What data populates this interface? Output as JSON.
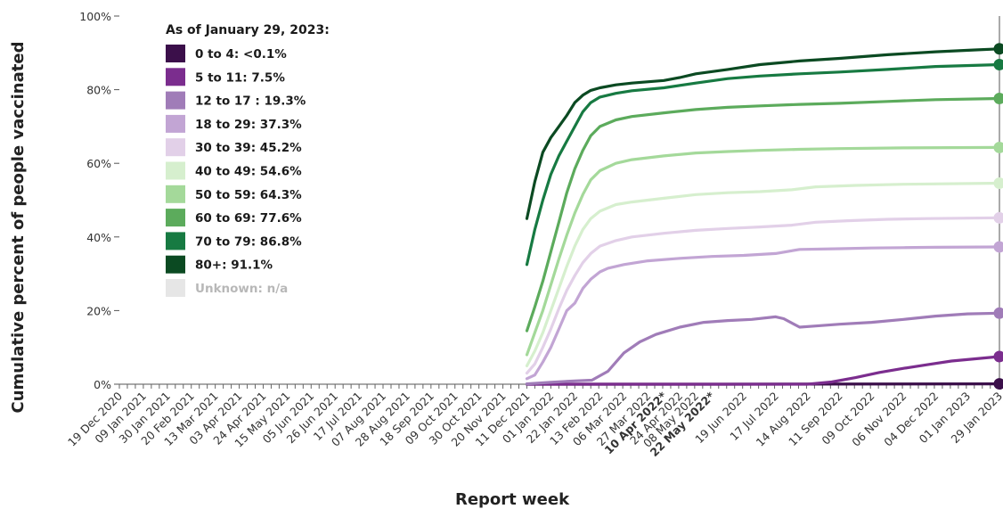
{
  "chart_data": {
    "type": "line",
    "xlabel": "Report week",
    "ylabel": "Cumulative percent of people vaccinated",
    "ylim": [
      0,
      100
    ],
    "y_ticks": [
      "0%",
      "20%",
      "40%",
      "60%",
      "80%",
      "100%"
    ],
    "y_tick_values": [
      0,
      20,
      40,
      60,
      80,
      100
    ],
    "x_range": [
      "2020-12-19",
      "2023-01-29"
    ],
    "x_tick_labels": [
      {
        "date": "2020-12-19",
        "label": "19 Dec 2020"
      },
      {
        "date": "2021-01-09",
        "label": "09 Jan 2021"
      },
      {
        "date": "2021-01-30",
        "label": "30 Jan 2021"
      },
      {
        "date": "2021-02-20",
        "label": "20 Feb 2021"
      },
      {
        "date": "2021-03-13",
        "label": "13 Mar 2021"
      },
      {
        "date": "2021-04-03",
        "label": "03 Apr 2021"
      },
      {
        "date": "2021-04-24",
        "label": "24 Apr 2021"
      },
      {
        "date": "2021-05-15",
        "label": "15 May 2021"
      },
      {
        "date": "2021-06-05",
        "label": "05 Jun 2021"
      },
      {
        "date": "2021-06-26",
        "label": "26 Jun 2021"
      },
      {
        "date": "2021-07-17",
        "label": "17 Jul 2021"
      },
      {
        "date": "2021-08-07",
        "label": "07 Aug 2021"
      },
      {
        "date": "2021-08-28",
        "label": "28 Aug 2021"
      },
      {
        "date": "2021-09-18",
        "label": "18 Sep 2021"
      },
      {
        "date": "2021-10-09",
        "label": "09 Oct 2021"
      },
      {
        "date": "2021-10-30",
        "label": "30 Oct 2021"
      },
      {
        "date": "2021-11-20",
        "label": "20 Nov 2021"
      },
      {
        "date": "2021-12-11",
        "label": "11 Dec 2021"
      },
      {
        "date": "2022-01-01",
        "label": "01 Jan 2022"
      },
      {
        "date": "2022-01-22",
        "label": "22 Jan 2022"
      },
      {
        "date": "2022-02-13",
        "label": "13 Feb 2022"
      },
      {
        "date": "2022-03-06",
        "label": "06 Mar 2022"
      },
      {
        "date": "2022-03-27",
        "label": "27 Mar 2022"
      },
      {
        "date": "2022-04-10",
        "label": "10 Apr 2022*",
        "bold": true
      },
      {
        "date": "2022-04-24",
        "label": "24 Apr 2022"
      },
      {
        "date": "2022-05-08",
        "label": "08 May 2022"
      },
      {
        "date": "2022-05-22",
        "label": "22 May 2022*",
        "bold": true
      },
      {
        "date": "2022-06-19",
        "label": "19 Jun 2022"
      },
      {
        "date": "2022-07-17",
        "label": "17 Jul 2022"
      },
      {
        "date": "2022-08-14",
        "label": "14 Aug 2022"
      },
      {
        "date": "2022-09-11",
        "label": "11 Sep 2022"
      },
      {
        "date": "2022-10-09",
        "label": "09 Oct 2022"
      },
      {
        "date": "2022-11-06",
        "label": "06 Nov 2022"
      },
      {
        "date": "2022-12-04",
        "label": "04 Dec 2022"
      },
      {
        "date": "2023-01-01",
        "label": "01 Jan 2023"
      },
      {
        "date": "2023-01-29",
        "label": "29 Jan 2023"
      }
    ],
    "legend_title": "As of January 29, 2023:",
    "legend_position": "top-left",
    "grid": false,
    "series": [
      {
        "name": "0 to 4: <0.1%",
        "color": "#3b0f4a",
        "points": [
          [
            "2021-12-11",
            0
          ],
          [
            "2022-06-01",
            0
          ],
          [
            "2023-01-29",
            0.1
          ]
        ]
      },
      {
        "name": "5 to 11: 7.5%",
        "color": "#7b2d8e",
        "points": [
          [
            "2021-12-11",
            0
          ],
          [
            "2022-08-14",
            0
          ],
          [
            "2022-09-04",
            0.6
          ],
          [
            "2022-09-25",
            1.8
          ],
          [
            "2022-10-16",
            3.2
          ],
          [
            "2022-11-06",
            4.3
          ],
          [
            "2022-11-27",
            5.3
          ],
          [
            "2022-12-18",
            6.3
          ],
          [
            "2023-01-08",
            6.9
          ],
          [
            "2023-01-29",
            7.5
          ]
        ]
      },
      {
        "name": "12 to 17 : 19.3%",
        "color": "#a07cb8",
        "points": [
          [
            "2021-12-11",
            0.1
          ],
          [
            "2022-01-01",
            0.5
          ],
          [
            "2022-01-22",
            0.9
          ],
          [
            "2022-02-06",
            1.1
          ],
          [
            "2022-02-20",
            3.5
          ],
          [
            "2022-03-06",
            8.5
          ],
          [
            "2022-03-20",
            11.5
          ],
          [
            "2022-04-03",
            13.5
          ],
          [
            "2022-04-24",
            15.5
          ],
          [
            "2022-05-15",
            16.8
          ],
          [
            "2022-06-05",
            17.3
          ],
          [
            "2022-06-26",
            17.6
          ],
          [
            "2022-07-17",
            18.3
          ],
          [
            "2022-07-24",
            17.8
          ],
          [
            "2022-08-07",
            15.5
          ],
          [
            "2022-08-21",
            15.8
          ],
          [
            "2022-09-11",
            16.3
          ],
          [
            "2022-10-09",
            16.8
          ],
          [
            "2022-11-06",
            17.6
          ],
          [
            "2022-12-04",
            18.5
          ],
          [
            "2023-01-01",
            19.1
          ],
          [
            "2023-01-29",
            19.3
          ]
        ]
      },
      {
        "name": "18 to 29: 37.3%",
        "color": "#c2a5d4",
        "points": [
          [
            "2021-12-11",
            1.5
          ],
          [
            "2021-12-18",
            2.5
          ],
          [
            "2021-12-25",
            6.0
          ],
          [
            "2022-01-01",
            10.0
          ],
          [
            "2022-01-08",
            15.0
          ],
          [
            "2022-01-15",
            20.0
          ],
          [
            "2022-01-22",
            22.0
          ],
          [
            "2022-01-29",
            26.0
          ],
          [
            "2022-02-05",
            28.5
          ],
          [
            "2022-02-13",
            30.5
          ],
          [
            "2022-02-20",
            31.5
          ],
          [
            "2022-03-06",
            32.5
          ],
          [
            "2022-03-27",
            33.5
          ],
          [
            "2022-04-24",
            34.2
          ],
          [
            "2022-05-22",
            34.7
          ],
          [
            "2022-06-19",
            35.0
          ],
          [
            "2022-07-17",
            35.5
          ],
          [
            "2022-08-07",
            36.6
          ],
          [
            "2022-09-11",
            36.8
          ],
          [
            "2022-10-09",
            37.0
          ],
          [
            "2022-11-06",
            37.1
          ],
          [
            "2022-12-04",
            37.2
          ],
          [
            "2023-01-29",
            37.3
          ]
        ]
      },
      {
        "name": "30 to 39: 45.2%",
        "color": "#e2d0e8",
        "points": [
          [
            "2021-12-11",
            3.0
          ],
          [
            "2021-12-18",
            5.5
          ],
          [
            "2021-12-25",
            10.0
          ],
          [
            "2022-01-01",
            15.0
          ],
          [
            "2022-01-08",
            20.5
          ],
          [
            "2022-01-15",
            25.5
          ],
          [
            "2022-01-22",
            29.5
          ],
          [
            "2022-01-29",
            33.0
          ],
          [
            "2022-02-05",
            35.5
          ],
          [
            "2022-02-13",
            37.5
          ],
          [
            "2022-02-27",
            39.0
          ],
          [
            "2022-03-13",
            40.0
          ],
          [
            "2022-04-10",
            41.0
          ],
          [
            "2022-05-08",
            41.8
          ],
          [
            "2022-06-05",
            42.3
          ],
          [
            "2022-07-03",
            42.7
          ],
          [
            "2022-07-31",
            43.2
          ],
          [
            "2022-08-21",
            44.0
          ],
          [
            "2022-09-18",
            44.4
          ],
          [
            "2022-10-23",
            44.8
          ],
          [
            "2022-11-27",
            45.0
          ],
          [
            "2023-01-29",
            45.2
          ]
        ]
      },
      {
        "name": "40 to 49: 54.6%",
        "color": "#d6efce",
        "points": [
          [
            "2021-12-11",
            5.0
          ],
          [
            "2021-12-18",
            9.0
          ],
          [
            "2021-12-25",
            14.0
          ],
          [
            "2022-01-01",
            20.0
          ],
          [
            "2022-01-08",
            26.0
          ],
          [
            "2022-01-15",
            32.0
          ],
          [
            "2022-01-22",
            37.5
          ],
          [
            "2022-01-29",
            42.0
          ],
          [
            "2022-02-05",
            45.0
          ],
          [
            "2022-02-13",
            47.0
          ],
          [
            "2022-02-27",
            48.8
          ],
          [
            "2022-03-13",
            49.5
          ],
          [
            "2022-04-10",
            50.5
          ],
          [
            "2022-05-08",
            51.5
          ],
          [
            "2022-06-05",
            52.0
          ],
          [
            "2022-07-03",
            52.3
          ],
          [
            "2022-07-31",
            52.8
          ],
          [
            "2022-08-21",
            53.6
          ],
          [
            "2022-09-25",
            54.0
          ],
          [
            "2022-11-06",
            54.3
          ],
          [
            "2023-01-29",
            54.6
          ]
        ]
      },
      {
        "name": "50 to 59: 64.3%",
        "color": "#a4d99a",
        "points": [
          [
            "2021-12-11",
            8.0
          ],
          [
            "2021-12-18",
            14.0
          ],
          [
            "2021-12-25",
            20.0
          ],
          [
            "2022-01-01",
            27.0
          ],
          [
            "2022-01-08",
            34.0
          ],
          [
            "2022-01-15",
            40.5
          ],
          [
            "2022-01-22",
            46.5
          ],
          [
            "2022-01-29",
            51.5
          ],
          [
            "2022-02-05",
            55.5
          ],
          [
            "2022-02-13",
            58.0
          ],
          [
            "2022-02-27",
            60.0
          ],
          [
            "2022-03-13",
            61.0
          ],
          [
            "2022-04-10",
            62.0
          ],
          [
            "2022-05-08",
            62.8
          ],
          [
            "2022-06-05",
            63.2
          ],
          [
            "2022-07-03",
            63.5
          ],
          [
            "2022-08-07",
            63.8
          ],
          [
            "2022-09-11",
            64.0
          ],
          [
            "2022-11-06",
            64.2
          ],
          [
            "2023-01-29",
            64.3
          ]
        ]
      },
      {
        "name": "60 to 69: 77.6%",
        "color": "#5cab5c",
        "points": [
          [
            "2021-12-11",
            14.5
          ],
          [
            "2021-12-18",
            21.0
          ],
          [
            "2021-12-25",
            28.0
          ],
          [
            "2022-01-01",
            36.0
          ],
          [
            "2022-01-08",
            44.0
          ],
          [
            "2022-01-15",
            52.0
          ],
          [
            "2022-01-22",
            58.5
          ],
          [
            "2022-01-29",
            63.5
          ],
          [
            "2022-02-05",
            67.5
          ],
          [
            "2022-02-13",
            70.0
          ],
          [
            "2022-02-27",
            71.8
          ],
          [
            "2022-03-13",
            72.7
          ],
          [
            "2022-04-10",
            73.7
          ],
          [
            "2022-05-08",
            74.6
          ],
          [
            "2022-06-05",
            75.2
          ],
          [
            "2022-07-03",
            75.6
          ],
          [
            "2022-08-07",
            76.0
          ],
          [
            "2022-09-11",
            76.3
          ],
          [
            "2022-10-23",
            76.8
          ],
          [
            "2022-12-04",
            77.3
          ],
          [
            "2023-01-29",
            77.6
          ]
        ]
      },
      {
        "name": "70 to 79: 86.8%",
        "color": "#177a42",
        "points": [
          [
            "2021-12-11",
            32.5
          ],
          [
            "2021-12-18",
            42.0
          ],
          [
            "2021-12-25",
            50.0
          ],
          [
            "2022-01-01",
            57.0
          ],
          [
            "2022-01-08",
            62.0
          ],
          [
            "2022-01-15",
            66.0
          ],
          [
            "2022-01-22",
            70.0
          ],
          [
            "2022-01-29",
            74.0
          ],
          [
            "2022-02-05",
            76.5
          ],
          [
            "2022-02-13",
            78.0
          ],
          [
            "2022-02-27",
            79.0
          ],
          [
            "2022-03-13",
            79.7
          ],
          [
            "2022-04-10",
            80.5
          ],
          [
            "2022-05-08",
            81.8
          ],
          [
            "2022-06-05",
            83.0
          ],
          [
            "2022-07-03",
            83.7
          ],
          [
            "2022-08-07",
            84.3
          ],
          [
            "2022-09-11",
            84.8
          ],
          [
            "2022-10-23",
            85.5
          ],
          [
            "2022-12-04",
            86.3
          ],
          [
            "2023-01-29",
            86.8
          ]
        ]
      },
      {
        "name": "80+: 91.1%",
        "color": "#0b4a22",
        "points": [
          [
            "2021-12-11",
            45.0
          ],
          [
            "2021-12-18",
            55.0
          ],
          [
            "2021-12-25",
            63.0
          ],
          [
            "2022-01-01",
            67.0
          ],
          [
            "2022-01-08",
            70.0
          ],
          [
            "2022-01-15",
            73.0
          ],
          [
            "2022-01-22",
            76.5
          ],
          [
            "2022-01-29",
            78.5
          ],
          [
            "2022-02-05",
            79.8
          ],
          [
            "2022-02-13",
            80.5
          ],
          [
            "2022-02-27",
            81.3
          ],
          [
            "2022-03-13",
            81.8
          ],
          [
            "2022-04-10",
            82.5
          ],
          [
            "2022-04-24",
            83.3
          ],
          [
            "2022-05-08",
            84.3
          ],
          [
            "2022-06-05",
            85.5
          ],
          [
            "2022-07-03",
            86.8
          ],
          [
            "2022-08-07",
            87.8
          ],
          [
            "2022-09-11",
            88.5
          ],
          [
            "2022-10-23",
            89.5
          ],
          [
            "2022-12-04",
            90.3
          ],
          [
            "2023-01-08",
            90.8
          ],
          [
            "2023-01-29",
            91.1
          ]
        ]
      }
    ],
    "legend_extra": {
      "name": "Unknown: n/a",
      "color": "#e6e6e6",
      "text_color": "#b8b8b8"
    }
  }
}
